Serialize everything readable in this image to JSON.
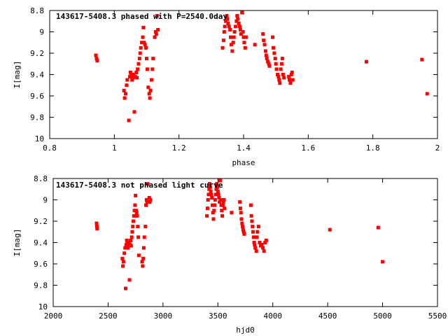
{
  "chart_data": [
    {
      "type": "scatter",
      "title": "143617-5408.3 phased with P=2540.0day",
      "xlabel": "phase",
      "ylabel": "I[mag]",
      "xlim": [
        0.8,
        2.0
      ],
      "ylim": [
        10.0,
        8.8
      ],
      "y_inverted": true,
      "xticks": [
        0.8,
        1.0,
        1.2,
        1.4,
        1.6,
        1.8,
        2.0
      ],
      "xtick_labels": [
        "0.8",
        "1",
        "1.2",
        "1.4",
        "1.6",
        "1.8",
        "2"
      ],
      "yticks": [
        8.8,
        9.0,
        9.2,
        9.4,
        9.6,
        9.8,
        10.0
      ],
      "ytick_labels": [
        "8.8",
        "9",
        "9.2",
        "9.4",
        "9.6",
        "9.8",
        "10"
      ],
      "color": "#ff0000",
      "series": [
        {
          "x": [
            0.943,
            0.945,
            0.947,
            1.03,
            1.032,
            1.035,
            1.038,
            1.04,
            1.045,
            1.048,
            1.05,
            1.052,
            1.055,
            1.058,
            1.06,
            1.062,
            1.065,
            1.068,
            1.07,
            1.072,
            1.075,
            1.078,
            1.08,
            1.082,
            1.085,
            1.088,
            1.09,
            1.092,
            1.095,
            1.098,
            1.1,
            1.102,
            1.105,
            1.108,
            1.11,
            1.112,
            1.115,
            1.118,
            1.12,
            1.125,
            1.128,
            1.13,
            1.132,
            1.135,
            1.335,
            1.338,
            1.34,
            1.342,
            1.345,
            1.348,
            1.35,
            1.352,
            1.355,
            1.358,
            1.36,
            1.362,
            1.365,
            1.368,
            1.37,
            1.372,
            1.375,
            1.378,
            1.38,
            1.382,
            1.385,
            1.388,
            1.39,
            1.392,
            1.395,
            1.398,
            1.4,
            1.402,
            1.405,
            1.408,
            1.435,
            1.46,
            1.462,
            1.465,
            1.468,
            1.47,
            1.472,
            1.475,
            1.478,
            1.48,
            1.49,
            1.492,
            1.495,
            1.498,
            1.5,
            1.502,
            1.505,
            1.508,
            1.51,
            1.512,
            1.515,
            1.518,
            1.52,
            1.522,
            1.525,
            1.54,
            1.542,
            1.545,
            1.548,
            1.55,
            1.552,
            1.78,
            1.952,
            1.968
          ],
          "y": [
            9.22,
            9.25,
            9.27,
            9.55,
            9.62,
            9.58,
            9.5,
            9.45,
            9.83,
            9.42,
            9.38,
            9.4,
            9.45,
            9.43,
            9.4,
            9.75,
            9.42,
            9.38,
            9.43,
            9.35,
            9.3,
            9.25,
            9.2,
            9.15,
            9.1,
            9.05,
            8.96,
            9.1,
            9.12,
            9.15,
            9.25,
            9.35,
            9.52,
            9.58,
            9.62,
            9.55,
            9.45,
            9.35,
            9.25,
            9.05,
            9.0,
            9.02,
            8.85,
            8.98,
            9.15,
            9.08,
            9.0,
            8.95,
            8.9,
            8.85,
            8.88,
            8.92,
            8.95,
            8.98,
            9.05,
            9.12,
            9.18,
            9.1,
            9.05,
            9.0,
            8.95,
            8.9,
            8.85,
            8.88,
            8.92,
            8.95,
            8.98,
            9.02,
            8.82,
            9.0,
            9.05,
            9.1,
            9.15,
            9.05,
            9.12,
            9.02,
            9.08,
            9.12,
            9.18,
            9.22,
            9.25,
            9.28,
            9.3,
            9.32,
            9.05,
            9.15,
            9.2,
            9.25,
            9.3,
            9.35,
            9.4,
            9.42,
            9.45,
            9.48,
            9.35,
            9.3,
            9.25,
            9.4,
            9.43,
            9.42,
            9.45,
            9.48,
            9.4,
            9.38,
            9.45,
            9.28,
            9.26,
            9.58
          ]
        }
      ]
    },
    {
      "type": "scatter",
      "title": "143617-5408.3 not phased light curve",
      "xlabel": "hjd0",
      "ylabel": "I[mag]",
      "xlim": [
        2000,
        5500
      ],
      "ylim": [
        10.0,
        8.8
      ],
      "y_inverted": true,
      "xticks": [
        2000,
        2500,
        3000,
        3500,
        4000,
        4500,
        5000,
        5500
      ],
      "xtick_labels": [
        "2000",
        "2500",
        "3000",
        "3500",
        "4000",
        "4500",
        "5000",
        "5500"
      ],
      "yticks": [
        8.8,
        9.0,
        9.2,
        9.4,
        9.6,
        9.8,
        10.0
      ],
      "ytick_labels": [
        "8.8",
        "9",
        "9.2",
        "9.4",
        "9.6",
        "9.8",
        "10"
      ],
      "color": "#ff0000",
      "series": [
        {
          "x": [
            2395,
            2398,
            2400,
            2630,
            2635,
            2640,
            2648,
            2655,
            2660,
            2665,
            2670,
            2675,
            2680,
            2685,
            2690,
            2695,
            2700,
            2705,
            2710,
            2715,
            2720,
            2725,
            2730,
            2735,
            2740,
            2745,
            2750,
            2755,
            2760,
            2765,
            2770,
            2775,
            2780,
            2810,
            2815,
            2820,
            2825,
            2830,
            2840,
            2845,
            2850,
            2855,
            2860,
            2875,
            2880,
            2885,
            3400,
            3405,
            3410,
            3415,
            3420,
            3425,
            3430,
            3435,
            3440,
            3445,
            3450,
            3455,
            3460,
            3465,
            3470,
            3475,
            3480,
            3485,
            3490,
            3495,
            3500,
            3505,
            3510,
            3515,
            3520,
            3525,
            3530,
            3535,
            3540,
            3545,
            3550,
            3555,
            3560,
            3625,
            3700,
            3705,
            3710,
            3715,
            3720,
            3725,
            3730,
            3735,
            3740,
            3800,
            3805,
            3810,
            3815,
            3820,
            3825,
            3830,
            3835,
            3840,
            3850,
            3855,
            3860,
            3870,
            3880,
            3890,
            3900,
            3910,
            3920,
            3930,
            3940,
            4520,
            4960,
            5000
          ],
          "y": [
            9.22,
            9.25,
            9.27,
            9.55,
            9.62,
            9.58,
            9.5,
            9.45,
            9.83,
            9.42,
            9.38,
            9.4,
            9.45,
            9.43,
            9.4,
            9.75,
            9.42,
            9.38,
            9.43,
            9.35,
            9.3,
            9.25,
            9.2,
            9.15,
            9.1,
            9.05,
            8.96,
            9.1,
            9.12,
            9.15,
            9.25,
            9.35,
            9.52,
            9.58,
            9.62,
            9.55,
            9.45,
            9.35,
            9.25,
            9.05,
            9.0,
            9.02,
            8.85,
            8.98,
            9.02,
            9.0,
            9.15,
            9.08,
            9.0,
            8.95,
            8.9,
            8.85,
            8.88,
            8.92,
            8.95,
            8.98,
            9.05,
            9.12,
            9.18,
            9.1,
            9.05,
            9.0,
            8.95,
            8.9,
            8.85,
            8.88,
            8.92,
            8.95,
            8.98,
            9.02,
            8.82,
            9.0,
            9.05,
            9.1,
            9.15,
            9.05,
            9.02,
            9.0,
            9.08,
            9.12,
            9.02,
            9.08,
            9.12,
            9.18,
            9.22,
            9.25,
            9.28,
            9.3,
            9.32,
            9.05,
            9.15,
            9.2,
            9.25,
            9.3,
            9.35,
            9.4,
            9.42,
            9.45,
            9.48,
            9.35,
            9.3,
            9.25,
            9.4,
            9.43,
            9.42,
            9.45,
            9.48,
            9.4,
            9.38,
            9.28,
            9.26,
            9.58
          ]
        }
      ]
    }
  ]
}
